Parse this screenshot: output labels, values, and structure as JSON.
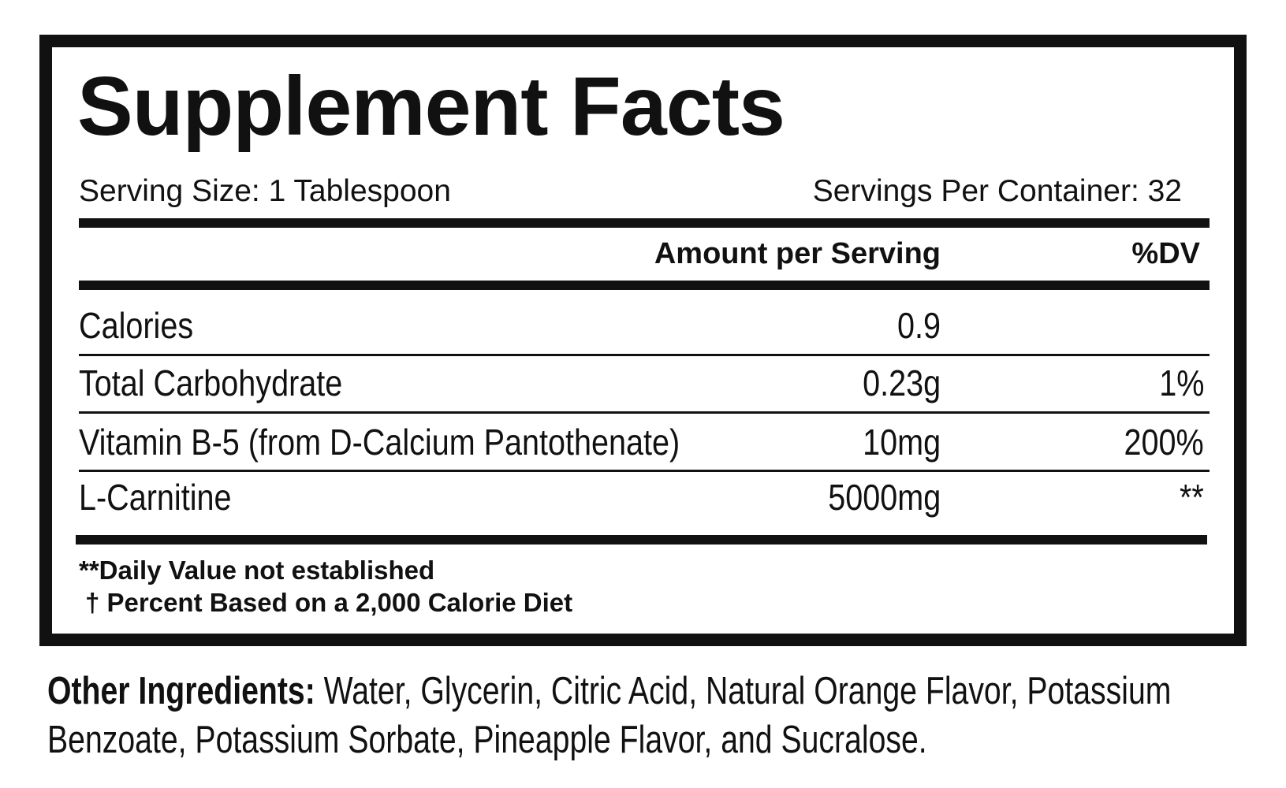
{
  "title": "Supplement Facts",
  "serving_size": "Serving Size: 1 Tablespoon",
  "servings_per_container": "Servings Per Container: 32",
  "table": {
    "header": {
      "amount": "Amount per Serving",
      "dv": "%DV"
    },
    "rows": [
      {
        "name": "Calories",
        "amount": "0.9"
      },
      {
        "name": "Total Carbohydrate",
        "amount": "0.23g",
        "dv": "1%"
      },
      {
        "name": "Vitamin B-5 (from D-Calcium Pantothenate)",
        "amount": "10mg",
        "dv": "200%"
      },
      {
        "name": "L-Carnitine",
        "amount": "5000mg",
        "dv": "**"
      }
    ]
  },
  "footnotes": [
    "**Daily Value not established",
    "† Percent Based on a 2,000 Calorie Diet"
  ],
  "other_ingredients": {
    "label": "Other Ingredients:",
    "text": "Water, Glycerin, Citric Acid, Natural Orange Flavor, Potassium Benzoate, Potassium Sorbate, Pineapple Flavor, and Sucralose."
  }
}
